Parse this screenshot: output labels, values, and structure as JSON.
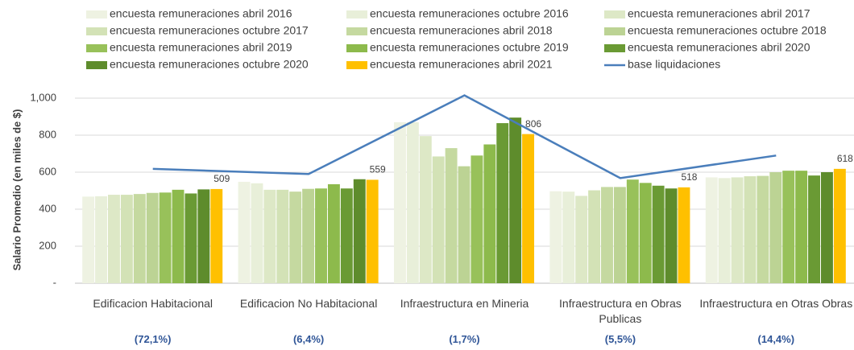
{
  "chart_data": {
    "type": "bar",
    "y_label": "Salario Promedio (en miles de $)",
    "categories": [
      "Edificacion Habitacional",
      "Edificacion No Habitacional",
      "Infraestructura en Mineria",
      "Infraestructura en Obras Publicas",
      "Infraestructura en Otras Obras"
    ],
    "category_notes": [
      "(72,1%)",
      "(6,4%)",
      "(1,7%)",
      "(5,5%)",
      "(14,4%)"
    ],
    "ylim": [
      0,
      1000
    ],
    "yticks": [
      {
        "value": 0,
        "label": "-"
      },
      200,
      400,
      600,
      800,
      {
        "value": 1000,
        "label": "1,000"
      }
    ],
    "grid": true,
    "series": [
      {
        "name": "encuesta remuneraciones abril 2016",
        "color": "#eef2e2",
        "values": [
          468,
          548,
          870,
          497,
          572
        ]
      },
      {
        "name": "encuesta remuneraciones octubre 2016",
        "color": "#e8efd9",
        "values": [
          470,
          540,
          870,
          495,
          568
        ]
      },
      {
        "name": "encuesta remuneraciones abril 2017",
        "color": "#dde8c6",
        "values": [
          478,
          505,
          795,
          472,
          572
        ]
      },
      {
        "name": "encuesta remuneraciones octubre 2017",
        "color": "#d3e2b6",
        "values": [
          478,
          505,
          685,
          502,
          578
        ]
      },
      {
        "name": "encuesta remuneraciones abril 2018",
        "color": "#c5d9a0",
        "values": [
          482,
          495,
          730,
          520,
          580
        ]
      },
      {
        "name": "encuesta remuneraciones octubre 2018",
        "color": "#bcd394",
        "values": [
          488,
          510,
          632,
          520,
          600
        ]
      },
      {
        "name": "encuesta remuneraciones abril 2019",
        "color": "#98c15a",
        "values": [
          490,
          512,
          690,
          560,
          608
        ]
      },
      {
        "name": "encuesta remuneraciones octubre 2019",
        "color": "#8dba4c",
        "values": [
          505,
          535,
          750,
          542,
          608
        ]
      },
      {
        "name": "encuesta remuneraciones abril 2020",
        "color": "#6a9a34",
        "values": [
          485,
          512,
          865,
          527,
          582
        ]
      },
      {
        "name": "encuesta remuneraciones octubre 2020",
        "color": "#5e8c2c",
        "values": [
          507,
          562,
          895,
          512,
          600
        ]
      },
      {
        "name": "encuesta remuneraciones abril 2021",
        "color": "#ffc000",
        "values": [
          509,
          559,
          806,
          518,
          618
        ],
        "data_labels": true
      },
      {
        "name": "base liquidaciones",
        "color": "#4a7ebb",
        "type": "line",
        "values": [
          618,
          590,
          1015,
          568,
          690
        ]
      }
    ]
  }
}
